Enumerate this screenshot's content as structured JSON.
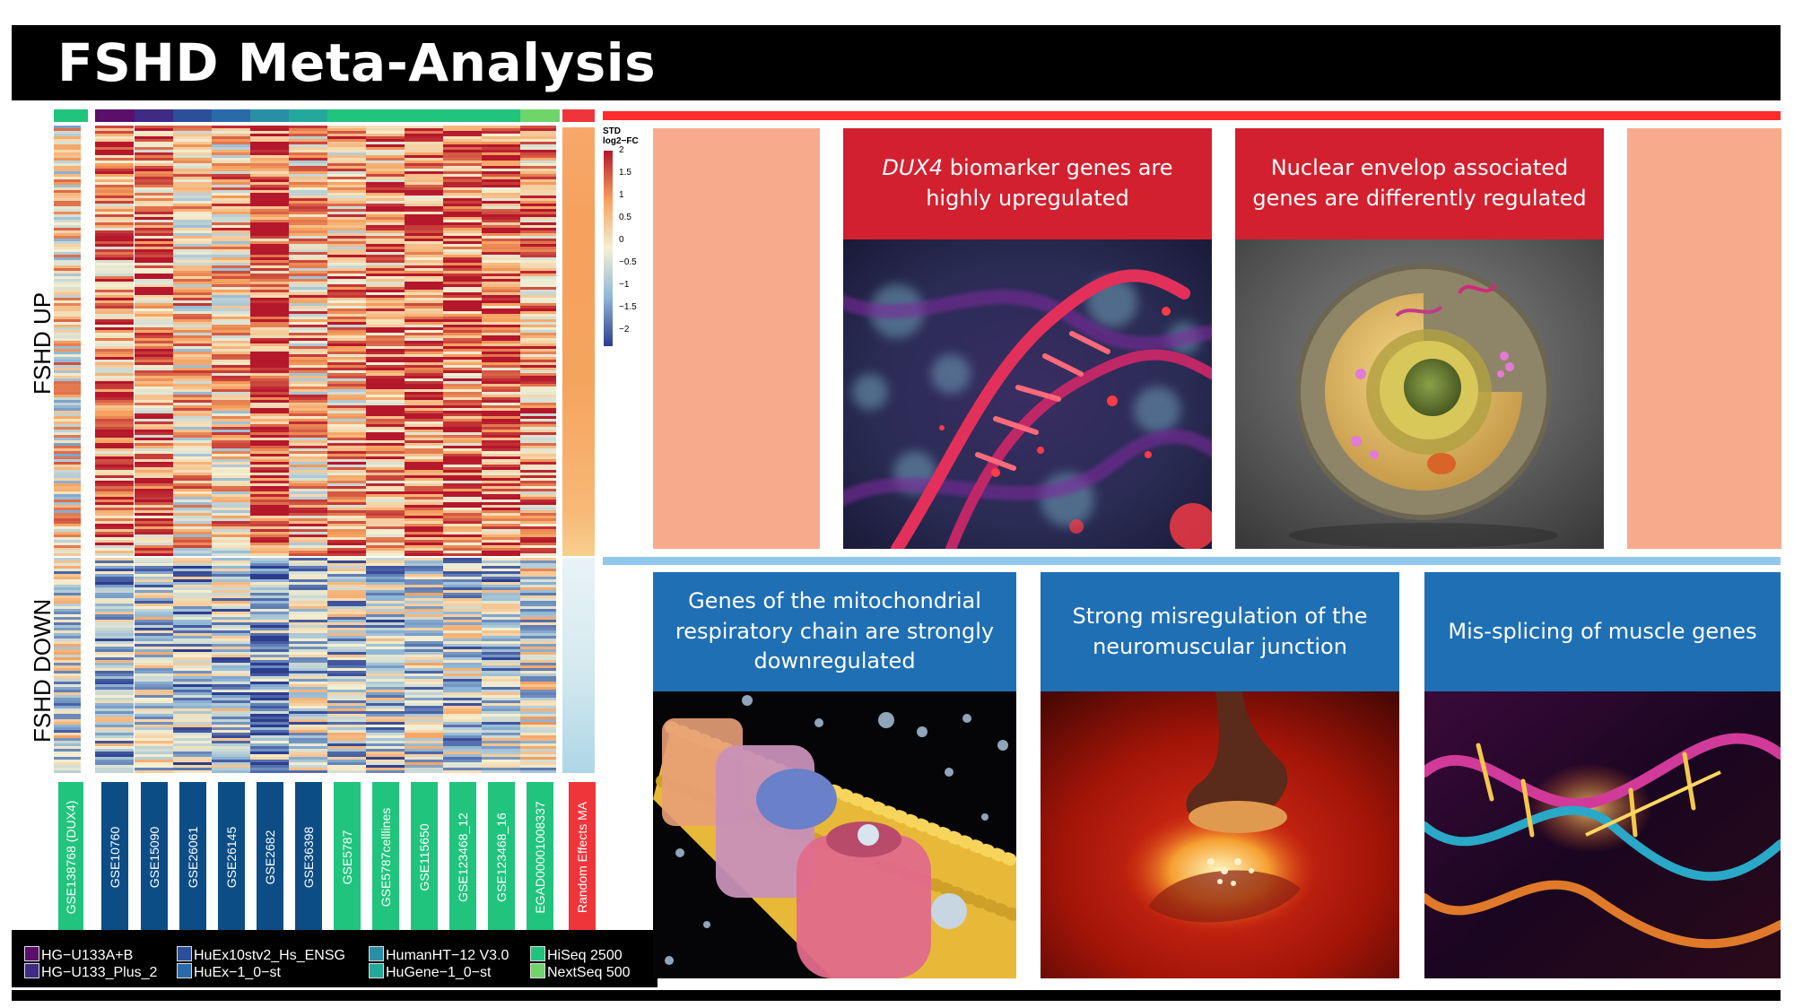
{
  "title": "FSHD Meta-Analysis",
  "heatmap": {
    "row_groups": [
      "FSHD UP",
      "FSHD DOWN"
    ],
    "colorbar": {
      "title_line1": "STD",
      "title_line2": "log2−FC",
      "ticks": [
        "2",
        "1.5",
        "1",
        "0.5",
        "0",
        "−0.5",
        "−1",
        "−1.5",
        "−2"
      ],
      "colors": [
        "#2c3d8f",
        "#8fb7d6",
        "#f5f0d2",
        "#f6a15e",
        "#b5172b"
      ]
    },
    "datasets": [
      {
        "label": "GSE138768 (DUX4)",
        "color": "#21c47d"
      },
      {
        "label": "GSE10760",
        "color": "#0c4d86"
      },
      {
        "label": "GSE15090",
        "color": "#0c4d86"
      },
      {
        "label": "GSE26061",
        "color": "#0c4d86"
      },
      {
        "label": "GSE26145",
        "color": "#0c4d86"
      },
      {
        "label": "GSE2682",
        "color": "#0c4d86"
      },
      {
        "label": "GSE36398",
        "color": "#0c4d86"
      },
      {
        "label": "GSE5787",
        "color": "#21c47d"
      },
      {
        "label": "GSE5787celllines",
        "color": "#21c47d"
      },
      {
        "label": "GSE115650",
        "color": "#21c47d"
      },
      {
        "label": "GSE123468_12",
        "color": "#21c47d"
      },
      {
        "label": "GSE123468_16",
        "color": "#21c47d"
      },
      {
        "label": "EGAD00001008337",
        "color": "#21c47d"
      },
      {
        "label": "Random Effects MA",
        "color": "#f0353a"
      }
    ],
    "platform_colors": [
      "#21c47d",
      "#5a0f6a",
      "#3f2a84",
      "#2c4f9a",
      "#2a6aa8",
      "#2a8fa6",
      "#24a89c",
      "#21c47d",
      "#21c47d",
      "#21c47d",
      "#21c47d",
      "#21c47d",
      "#6fd56a",
      "#f0353a"
    ]
  },
  "legend": [
    {
      "label": "HG−U133A+B",
      "color": "#5a0f6a"
    },
    {
      "label": "HG−U133_Plus_2",
      "color": "#3f2a84"
    },
    {
      "label": "HuEx10stv2_Hs_ENSG",
      "color": "#2c4f9a"
    },
    {
      "label": "HuEx−1_0−st",
      "color": "#2a6aa8"
    },
    {
      "label": "HumanHT−12  V3.0",
      "color": "#2a8fa6"
    },
    {
      "label": "HuGene−1_0−st",
      "color": "#24a89c"
    },
    {
      "label": "HiSeq 2500",
      "color": "#21c47d"
    },
    {
      "label": "NextSeq 500",
      "color": "#6fd56a"
    }
  ],
  "panels": {
    "up": [
      {
        "emph": "DUX4",
        "text": " biomarker genes are highly upregulated"
      },
      {
        "emph": "",
        "text": "Nuclear envelop associated genes are differently regulated"
      }
    ],
    "down": [
      {
        "text": "Genes of the mitochondrial respiratory chain are strongly downregulated"
      },
      {
        "text": "Strong misregulation of the neuromuscular junction"
      },
      {
        "text": "Mis-splicing of muscle genes"
      }
    ]
  },
  "accent": {
    "red": "#ff2a2a",
    "blue": "#8fc8ec",
    "salmon": "#f8ab8c"
  }
}
